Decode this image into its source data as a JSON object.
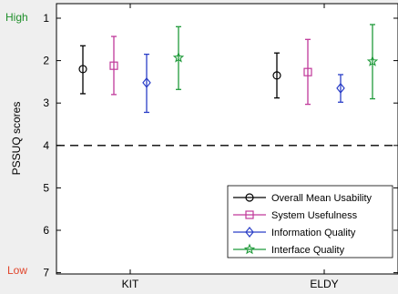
{
  "chart_data": {
    "type": "scatter",
    "ylabel": "PSSUQ scores",
    "xlabel": "",
    "categories": [
      "KIT",
      "ELDY"
    ],
    "ylim": [
      1,
      7.3
    ],
    "y_reversed": true,
    "yticks": [
      "1",
      "2",
      "3",
      "4",
      "5",
      "6",
      "7"
    ],
    "reference_line": {
      "y": 4,
      "style": "dashed"
    },
    "extreme_labels": {
      "high": {
        "text": "High",
        "color": "#1f8f2a"
      },
      "low": {
        "text": "Low",
        "color": "#e0442a"
      }
    },
    "legend_position": "bottom-right",
    "series": [
      {
        "name": "Overall Mean Usability",
        "marker": "circle",
        "color": "#000000",
        "values": [
          {
            "mean": 2.2,
            "low": 1.65,
            "high": 2.78
          },
          {
            "mean": 2.35,
            "low": 1.82,
            "high": 2.88
          }
        ]
      },
      {
        "name": "System Usefulness",
        "marker": "square",
        "color": "#c0399a",
        "values": [
          {
            "mean": 2.12,
            "low": 1.43,
            "high": 2.8
          },
          {
            "mean": 2.27,
            "low": 1.5,
            "high": 3.03
          }
        ]
      },
      {
        "name": "Information Quality",
        "marker": "diamond",
        "color": "#2b3fc7",
        "values": [
          {
            "mean": 2.52,
            "low": 1.85,
            "high": 3.22
          },
          {
            "mean": 2.65,
            "low": 2.33,
            "high": 2.98
          }
        ]
      },
      {
        "name": "Interface Quality",
        "marker": "star",
        "color": "#1f9a3a",
        "values": [
          {
            "mean": 1.93,
            "low": 1.2,
            "high": 2.68
          },
          {
            "mean": 2.02,
            "low": 1.15,
            "high": 2.9
          }
        ]
      }
    ]
  }
}
